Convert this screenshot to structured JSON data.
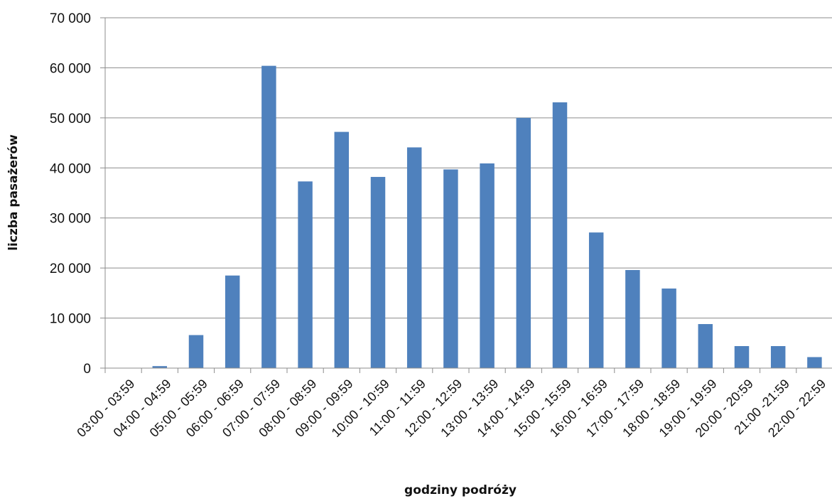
{
  "chart_data": {
    "type": "bar",
    "title": "",
    "xlabel": "godziny podróży",
    "ylabel": "liczba pasażerów",
    "categories": [
      "03:00 - 03:59",
      "04:00 - 04:59",
      "05:00 - 05:59",
      "06:00 - 06:59",
      "07:00 - 07:59",
      "08:00 - 08:59",
      "09:00 - 09:59",
      "10:00 - 10:59",
      "11:00 - 11:59",
      "12:00 - 12:59",
      "13:00 - 13:59",
      "14:00 - 14:59",
      "15:00 - 15:59",
      "16:00 - 16:59",
      "17:00 - 17:59",
      "18:00 - 18:59",
      "19:00 - 19:59",
      "20:00 - 20:59",
      "21:00 -21:59",
      "22:00 - 22:59"
    ],
    "values": [
      0,
      400,
      6600,
      18500,
      60400,
      37300,
      47200,
      38200,
      44100,
      39700,
      40900,
      50000,
      53100,
      27100,
      19600,
      15900,
      8800,
      4400,
      4400,
      2200
    ],
    "ylim": [
      0,
      70000
    ],
    "yticks": [
      0,
      10000,
      20000,
      30000,
      40000,
      50000,
      60000,
      70000
    ],
    "ytick_labels": [
      "0",
      "10 000",
      "20 000",
      "30 000",
      "40 000",
      "50 000",
      "60 000",
      "70 000"
    ],
    "grid": true,
    "legend": "none",
    "bar_color": "#4f81bd",
    "grid_color": "#8c8c8c"
  }
}
